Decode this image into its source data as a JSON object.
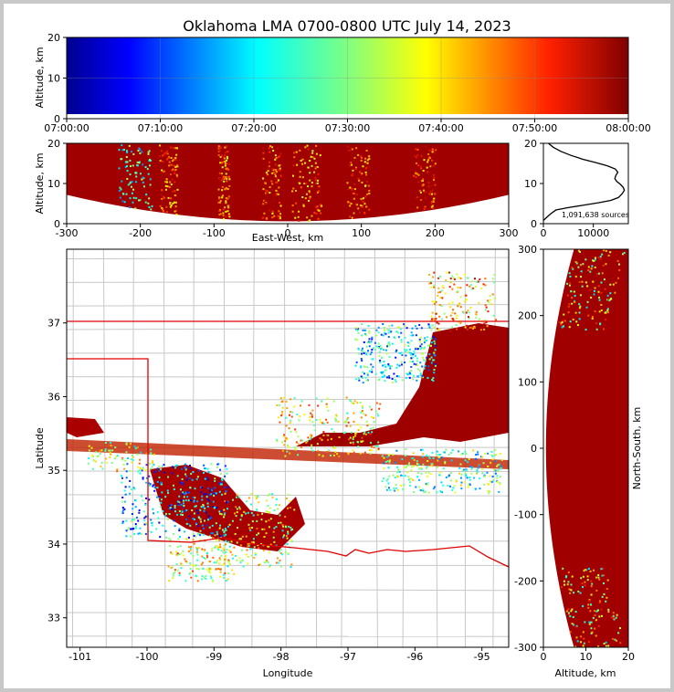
{
  "title": "Oklahoma LMA 0700-0800 UTC July 14, 2023",
  "chart_data": [
    {
      "type": "scatter",
      "panel": "time-height",
      "ylabel": "Altitude, km",
      "ylim": [
        0,
        20
      ],
      "yticks": [
        "0",
        "10",
        "20"
      ],
      "xlim": [
        "07:00:00",
        "08:00:00"
      ],
      "xticks": [
        "07:00:00",
        "07:10:00",
        "07:20:00",
        "07:30:00",
        "07:40:00",
        "07:50:00",
        "08:00:00"
      ],
      "colormap": "jet (color = time)",
      "grid": true
    },
    {
      "type": "scatter",
      "panel": "east-west vs altitude",
      "xlabel": "East-West, km",
      "ylabel": "Altitude, km",
      "xlim": [
        -300,
        300
      ],
      "ylim": [
        0,
        20
      ],
      "xticks": [
        "-300",
        "-200",
        "-100",
        "0",
        "100",
        "200",
        "300"
      ],
      "yticks": [
        "0",
        "10",
        "20"
      ]
    },
    {
      "type": "line",
      "panel": "source count vs altitude",
      "annotation": "1,091,638 sources",
      "xticks": [
        "0",
        "10000"
      ],
      "yticks": [
        "0",
        "10",
        "20"
      ],
      "xlim": [
        0,
        17000
      ],
      "ylim": [
        0,
        20
      ],
      "profile": [
        [
          0,
          0.8
        ],
        [
          600,
          1.5
        ],
        [
          1500,
          2.5
        ],
        [
          2500,
          3.4
        ],
        [
          5000,
          4.0
        ],
        [
          8000,
          4.6
        ],
        [
          11000,
          5.2
        ],
        [
          13500,
          5.8
        ],
        [
          15000,
          6.5
        ],
        [
          15800,
          7.5
        ],
        [
          16200,
          8.3
        ],
        [
          16000,
          9.0
        ],
        [
          15400,
          9.8
        ],
        [
          14700,
          10.5
        ],
        [
          14300,
          11.2
        ],
        [
          14500,
          12.0
        ],
        [
          14900,
          12.8
        ],
        [
          14400,
          13.6
        ],
        [
          12800,
          14.4
        ],
        [
          10500,
          15.2
        ],
        [
          8000,
          16.0
        ],
        [
          5500,
          17.0
        ],
        [
          3500,
          18.0
        ],
        [
          2000,
          19.0
        ],
        [
          1000,
          20.0
        ]
      ]
    },
    {
      "type": "scatter",
      "panel": "plan view",
      "xlabel": "Longitude",
      "ylabel": "Latitude",
      "xlim": [
        -101.2,
        -94.6
      ],
      "ylim": [
        32.6,
        38.0
      ],
      "xticks": [
        "-101",
        "-100",
        "-99",
        "-98",
        "-97",
        "-96",
        "-95"
      ],
      "yticks": [
        "33",
        "34",
        "35",
        "36",
        "37"
      ]
    },
    {
      "type": "scatter",
      "panel": "altitude vs north-south",
      "xlabel": "Altitude, km",
      "ylabel": "North-South, km",
      "xlim": [
        0,
        20
      ],
      "ylim": [
        -300,
        300
      ],
      "xticks": [
        "0",
        "10",
        "20"
      ],
      "yticks": [
        "-300",
        "-200",
        "-100",
        "0",
        "100",
        "200",
        "300"
      ]
    }
  ],
  "colors": {
    "early": "#00008f",
    "late": "#800000",
    "state_border": "#e00000",
    "county_lines": "#c8c8c8",
    "profile_line": "#000000"
  }
}
